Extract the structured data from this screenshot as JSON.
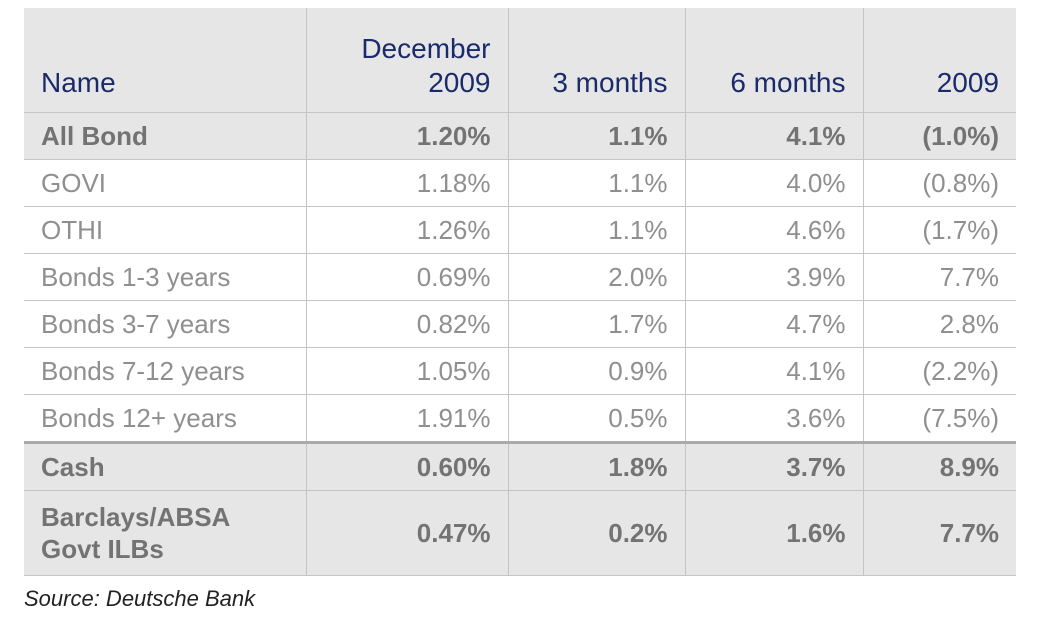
{
  "table": {
    "headers": [
      "Name",
      "December 2009",
      "3 months",
      "6 months",
      "2009"
    ],
    "rows": [
      {
        "name": "All Bond",
        "values": [
          "1.20%",
          "1.1%",
          "4.1%",
          "(1.0%)"
        ]
      },
      {
        "name": "GOVI",
        "values": [
          "1.18%",
          "1.1%",
          "4.0%",
          "(0.8%)"
        ]
      },
      {
        "name": "OTHI",
        "values": [
          "1.26%",
          "1.1%",
          "4.6%",
          "(1.7%)"
        ]
      },
      {
        "name": "Bonds 1-3 years",
        "values": [
          "0.69%",
          "2.0%",
          "3.9%",
          "7.7%"
        ]
      },
      {
        "name": "Bonds 3-7 years",
        "values": [
          "0.82%",
          "1.7%",
          "4.7%",
          "2.8%"
        ]
      },
      {
        "name": "Bonds 7-12 years",
        "values": [
          "1.05%",
          "0.9%",
          "4.1%",
          "(2.2%)"
        ]
      },
      {
        "name": "Bonds 12+ years",
        "values": [
          "1.91%",
          "0.5%",
          "3.6%",
          "(7.5%)"
        ]
      },
      {
        "name": "Cash",
        "values": [
          "0.60%",
          "1.8%",
          "3.7%",
          "8.9%"
        ]
      },
      {
        "name": "Barclays/ABSA Govt ILBs",
        "values": [
          "0.47%",
          "0.2%",
          "1.6%",
          "7.7%"
        ]
      }
    ]
  },
  "source": "Source: Deutsche Bank",
  "colors": {
    "header_text": "#1a2b6b",
    "header_bg": "#e6e6e6",
    "body_text": "#8f8f8f",
    "highlight_text": "#737373"
  }
}
